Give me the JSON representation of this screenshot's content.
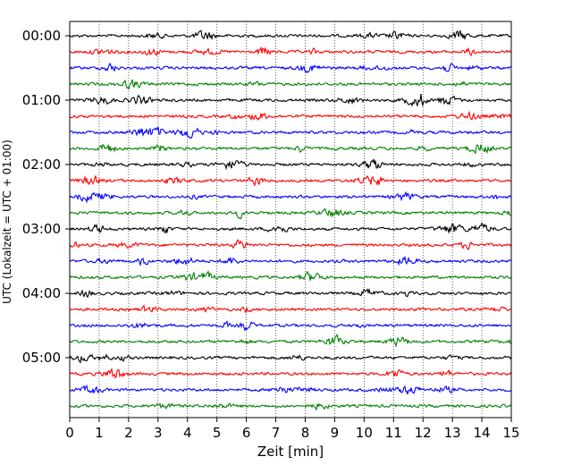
{
  "chart_data": {
    "type": "line",
    "xlabel": "Zeit  [min]",
    "ylabel": "UTC (Lokalzeit = UTC + 01:00)",
    "xlim": [
      0,
      15
    ],
    "x_ticks": [
      "0",
      "1",
      "2",
      "3",
      "4",
      "5",
      "6",
      "7",
      "8",
      "9",
      "10",
      "11",
      "12",
      "13",
      "14",
      "15"
    ],
    "y_tick_labels": [
      "00:00",
      "01:00",
      "02:00",
      "03:00",
      "04:00",
      "05:00"
    ],
    "row_interval_minutes": 15,
    "row_count": 24,
    "row_colors": [
      "#000000",
      "#ff0000",
      "#0000ff",
      "#008000"
    ],
    "vertical_grid": "dotted",
    "trace_description": "continuous seismogram, one 15-minute trace per row, colors cycle black/red/blue/green"
  }
}
